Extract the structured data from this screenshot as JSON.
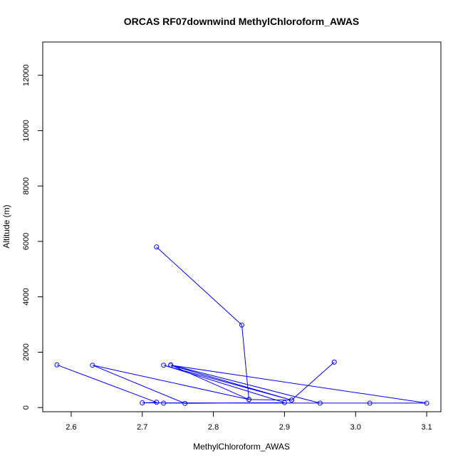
{
  "chart_data": {
    "type": "line",
    "title": "ORCAS RF07downwind MethylChloroform_AWAS",
    "xlabel": "MethylChloroform_AWAS",
    "ylabel": "Altitude (m)",
    "xlim": [
      2.56,
      3.12
    ],
    "ylim": [
      -150,
      13200
    ],
    "x_ticks": [
      2.6,
      2.7,
      2.8,
      2.9,
      3.0,
      3.1
    ],
    "x_tick_labels": [
      "2.6",
      "2.7",
      "2.8",
      "2.9",
      "3.0",
      "3.1"
    ],
    "y_ticks": [
      0,
      2000,
      4000,
      6000,
      8000,
      10000,
      12000
    ],
    "y_tick_labels": [
      "0",
      "2000",
      "4000",
      "6000",
      "8000",
      "10000",
      "12000"
    ],
    "grid": false,
    "color": "#0000ff",
    "series": [
      {
        "x": [
          2.72,
          2.84,
          2.85,
          2.91,
          2.97
        ],
        "y": [
          5800,
          2980,
          290,
          270,
          1640
        ]
      },
      {
        "x": [
          2.58,
          2.72,
          2.7,
          2.95,
          2.74,
          2.85,
          2.63,
          2.76,
          2.9,
          2.73,
          2.91,
          2.74,
          3.1,
          3.02,
          2.73
        ],
        "y": [
          1540,
          190,
          170,
          160,
          1540,
          290,
          1530,
          150,
          180,
          1530,
          270,
          1530,
          160,
          160,
          160
        ]
      }
    ]
  }
}
